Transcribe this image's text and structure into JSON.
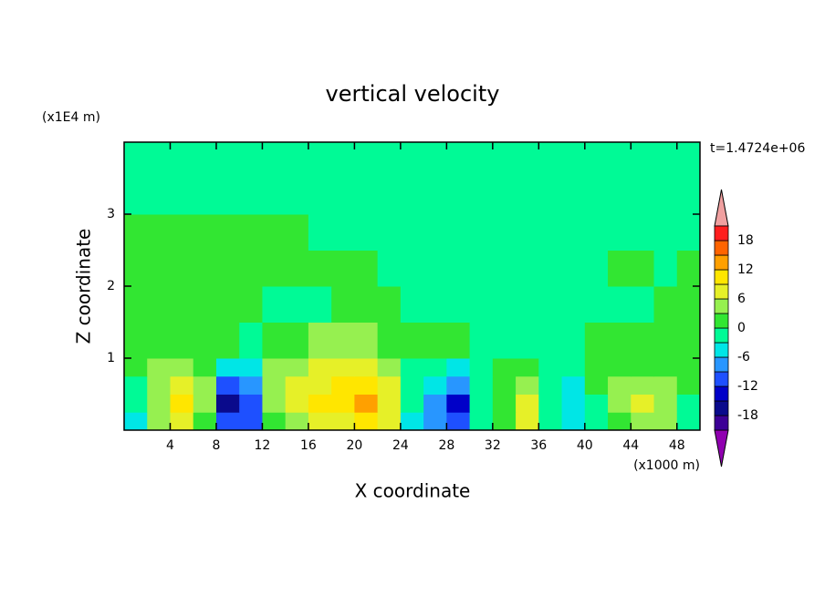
{
  "chart_data": {
    "type": "contour",
    "title": "vertical velocity",
    "x_label": "X coordinate",
    "y_label": "Z coordinate",
    "x_unit": "(x1000 m)",
    "y_unit": "(x1E4 m)",
    "annotation": "t=1.4724e+06",
    "xlim": [
      0,
      50
    ],
    "ylim": [
      0,
      4
    ],
    "xticks": [
      4,
      8,
      12,
      16,
      20,
      24,
      28,
      32,
      36,
      40,
      44,
      48
    ],
    "yticks": [
      1,
      2,
      3
    ],
    "x_edges": [
      0,
      2,
      4,
      6,
      8,
      10,
      12,
      14,
      16,
      18,
      20,
      22,
      24,
      26,
      28,
      30,
      32,
      34,
      36,
      38,
      40,
      42,
      44,
      46,
      48,
      50
    ],
    "z_edges": [
      0,
      0.25,
      0.5,
      0.75,
      1,
      1.5,
      2,
      2.5,
      3,
      4
    ],
    "values": [
      [
        -4,
        4,
        8,
        2,
        -12,
        -10,
        1,
        5,
        7,
        8,
        9,
        7,
        -4,
        -8,
        -12,
        -3,
        1,
        6,
        -3,
        -4,
        -2,
        2,
        4,
        3,
        -2
      ],
      [
        -3,
        5,
        11,
        3,
        -17,
        -12,
        3,
        7,
        9,
        11,
        12,
        8,
        -3,
        -9,
        -15,
        -2,
        2,
        8,
        -3,
        -5,
        -1,
        4,
        6,
        5,
        -1
      ],
      [
        -2,
        4,
        7,
        3,
        -12,
        -8,
        4,
        6,
        8,
        9,
        10,
        6,
        -3,
        -6,
        -8,
        -2,
        1,
        4,
        -2,
        -4,
        1,
        3,
        5,
        4,
        1
      ],
      [
        1,
        3,
        4,
        2,
        -6,
        -4,
        3,
        5,
        6,
        6,
        6,
        4,
        -2,
        -3,
        -4,
        -1,
        1,
        1,
        -1,
        -2,
        1,
        2,
        2,
        2,
        1
      ],
      [
        1,
        2,
        2,
        1,
        1,
        -1,
        1,
        2,
        3,
        4,
        3,
        2,
        1,
        1,
        1,
        -1,
        -1,
        -1,
        -1,
        -1,
        1,
        1,
        1,
        1,
        1
      ],
      [
        1,
        1,
        1,
        1,
        1,
        1,
        -1,
        -1,
        -1,
        1,
        1,
        1,
        -1,
        -1,
        -1,
        -1,
        -1,
        -1,
        -1,
        -1,
        -1,
        -1,
        -1,
        1,
        1
      ],
      [
        1,
        1,
        1,
        1,
        1,
        1,
        1,
        1,
        1,
        1,
        1,
        -1,
        -1,
        -1,
        -1,
        -1,
        -1,
        -1,
        -1,
        -1,
        -1,
        1,
        1,
        -1,
        1
      ],
      [
        1,
        1,
        1,
        1,
        1,
        1,
        1,
        1,
        -1,
        -1,
        -1,
        -1,
        -1,
        -1,
        -1,
        -1,
        -1,
        -1,
        -1,
        -1,
        -1,
        -1,
        -1,
        -1,
        -1
      ],
      [
        -1,
        -1,
        -1,
        -1,
        -1,
        -1,
        -1,
        -1,
        -1,
        -1,
        -1,
        -1,
        -1,
        -1,
        -1,
        -1,
        -1,
        -1,
        -1,
        -1,
        -1,
        -1,
        -1,
        -1,
        -1
      ]
    ],
    "levels": [
      -21,
      -18,
      -15,
      -12,
      -9,
      -6,
      -3,
      0,
      3,
      6,
      9,
      12,
      15,
      18,
      21
    ],
    "colors": [
      "#9000b0",
      "#3c0096",
      "#0a0a8c",
      "#0000c8",
      "#1e50ff",
      "#2896ff",
      "#00e6e6",
      "#00fa96",
      "#32e632",
      "#96f050",
      "#e6f028",
      "#ffe600",
      "#ffa000",
      "#ff6400",
      "#ff1e1e",
      "#f0a0a0"
    ],
    "colorbar_ticks": [
      -18,
      -12,
      -6,
      0,
      6,
      12,
      18
    ]
  }
}
